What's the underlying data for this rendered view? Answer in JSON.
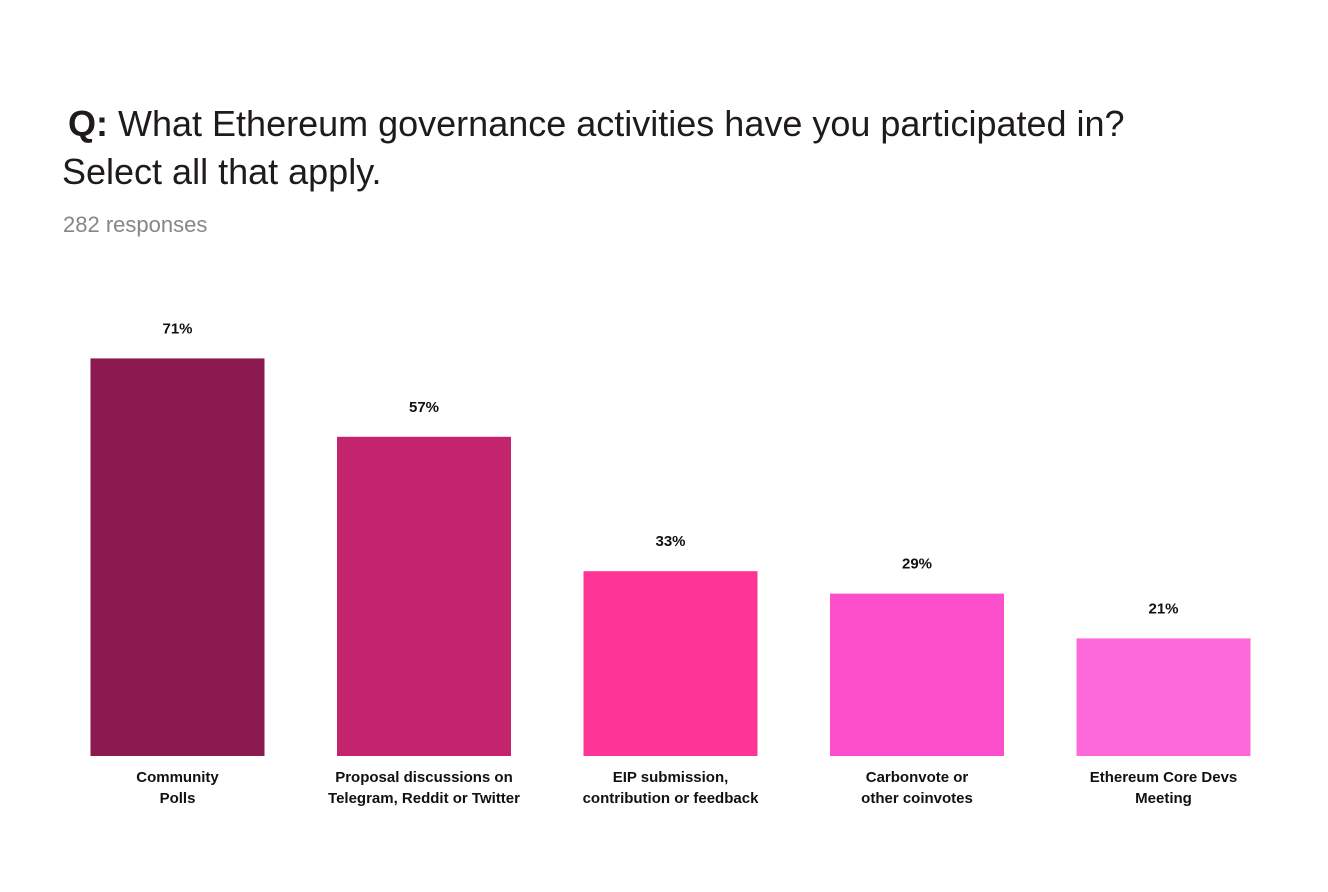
{
  "header": {
    "q_prefix": "Q:",
    "question_line1": "What Ethereum governance activities have you participated in?",
    "question_line2": "Select all that apply.",
    "responses": "282 responses"
  },
  "chart_data": {
    "type": "bar",
    "title": "",
    "xlabel": "",
    "ylabel": "",
    "ylim": [
      0,
      100
    ],
    "grid": false,
    "legend": "none",
    "value_suffix": "%",
    "categories": [
      [
        "Community",
        "Polls"
      ],
      [
        "Proposal discussions on",
        "Telegram, Reddit or Twitter"
      ],
      [
        "EIP submission,",
        "contribution or feedback"
      ],
      [
        "Carbonvote or",
        "other coinvotes"
      ],
      [
        "Ethereum Core Devs",
        "Meeting"
      ]
    ],
    "values": [
      71,
      57,
      33,
      29,
      21
    ],
    "labels": [
      "71%",
      "57%",
      "33%",
      "29%",
      "21%"
    ],
    "colors": [
      "#8b1a4f",
      "#c4236e",
      "#fe3496",
      "#fb4fcb",
      "#fd69d9"
    ]
  }
}
